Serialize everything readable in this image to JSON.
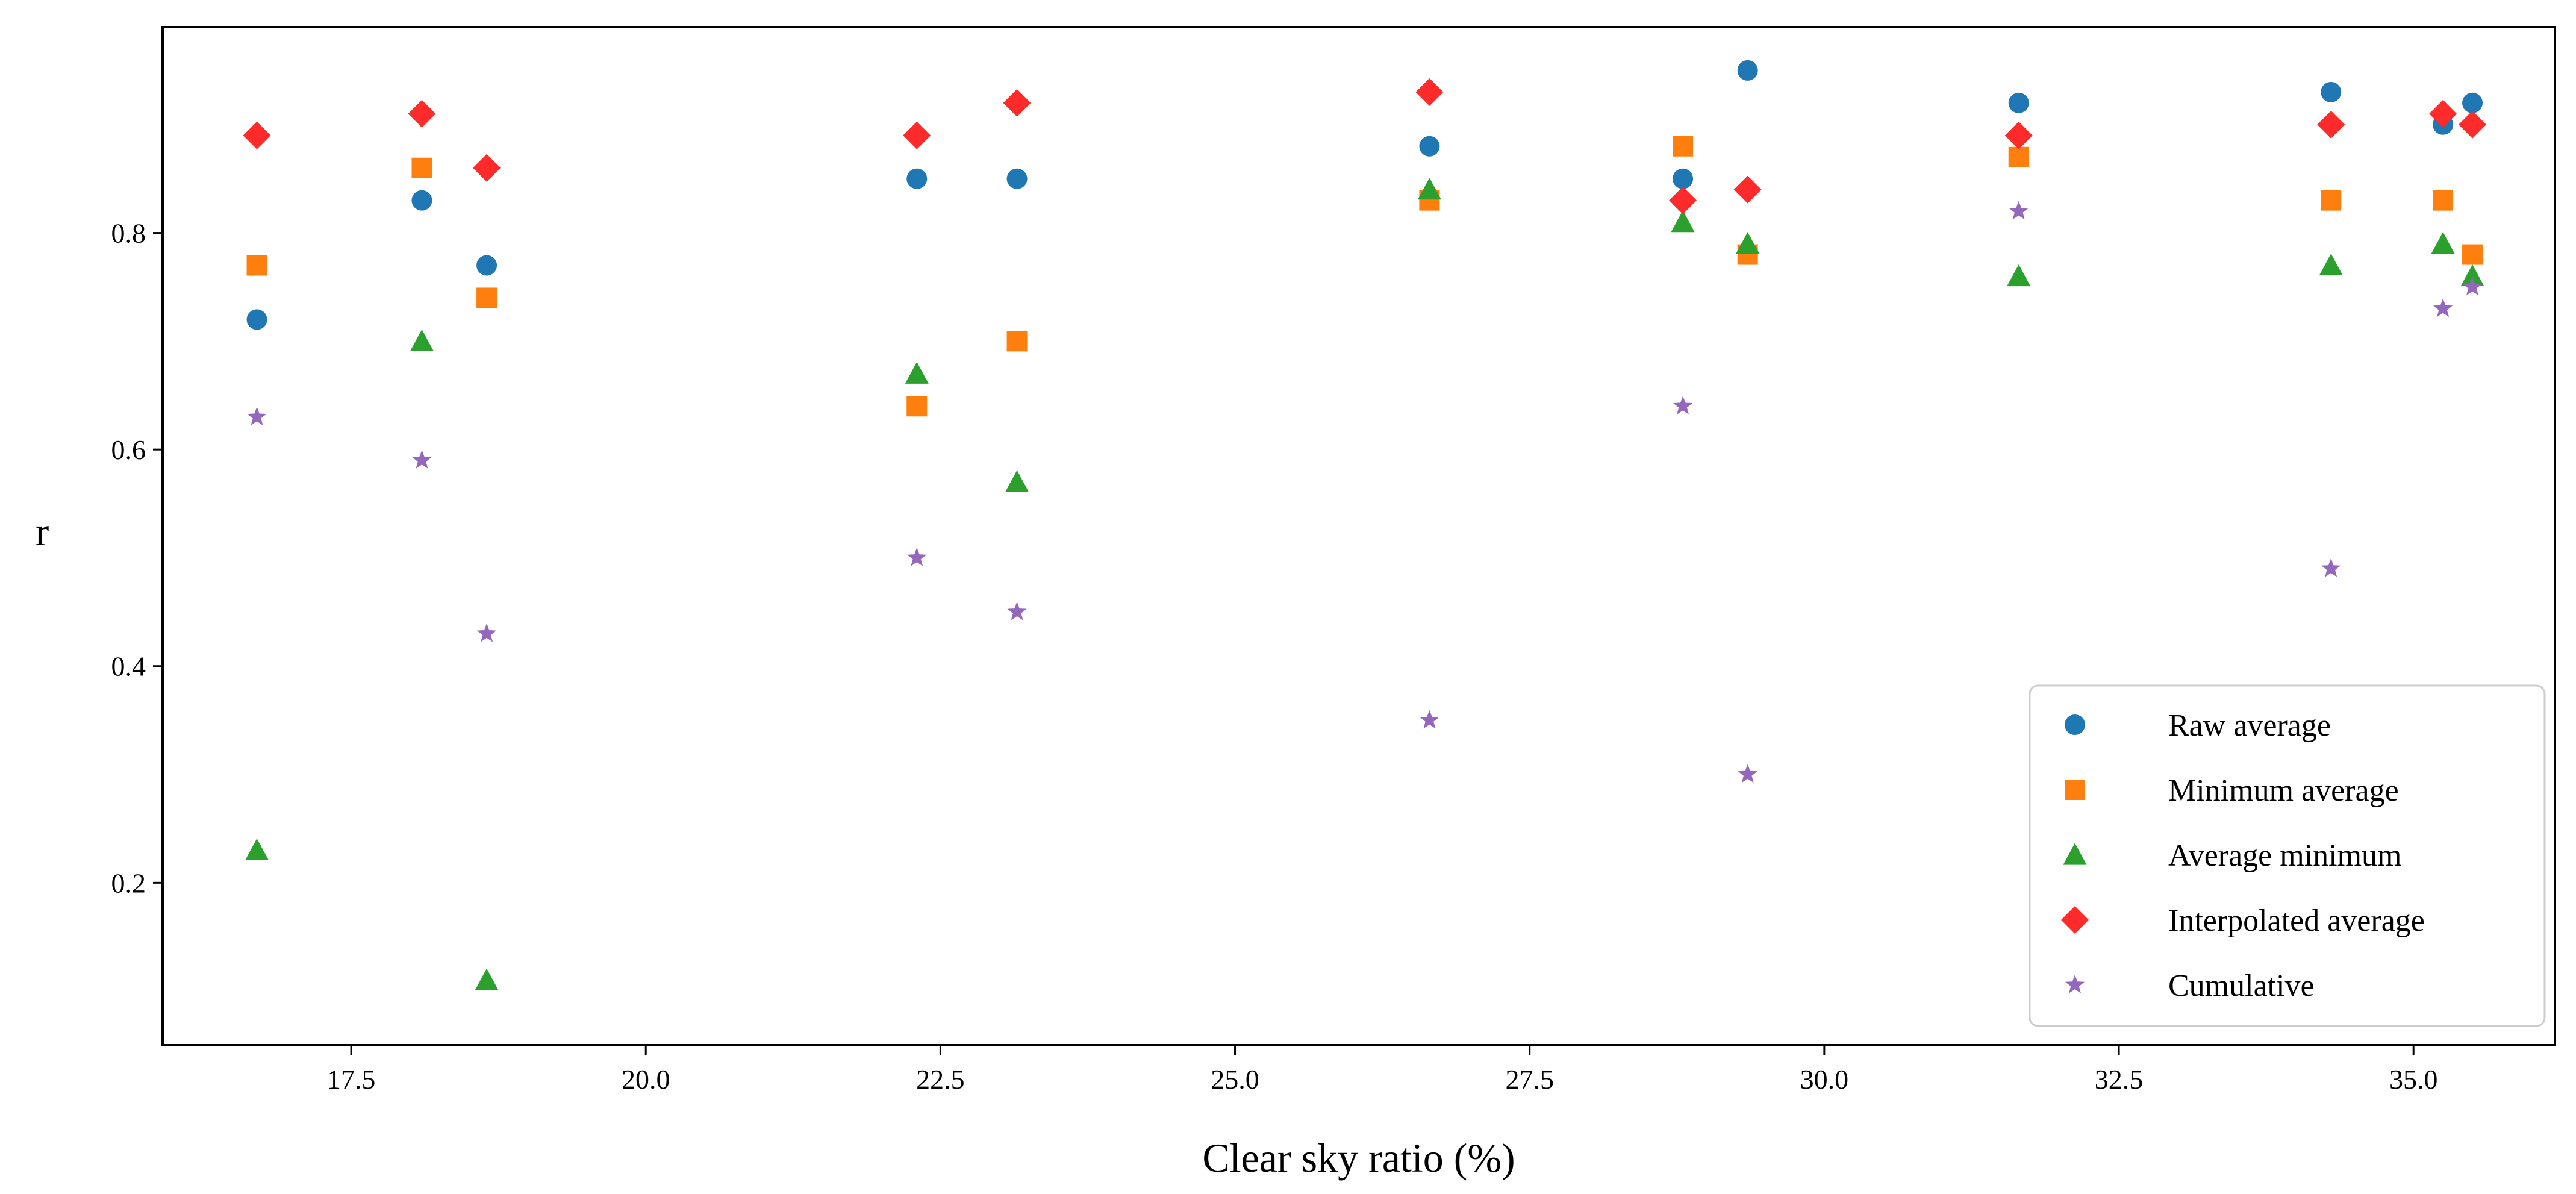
{
  "chart_data": {
    "type": "scatter",
    "title": "",
    "xlabel": "Clear sky ratio (%)",
    "ylabel": "r",
    "xlim": [
      15.9,
      36.2
    ],
    "ylim": [
      0.05,
      0.99
    ],
    "xticks": [
      17.5,
      20.0,
      22.5,
      25.0,
      27.5,
      30.0,
      32.5,
      35.0
    ],
    "xtick_labels": [
      "17.5",
      "20.0",
      "22.5",
      "25.0",
      "27.5",
      "30.0",
      "32.5",
      "35.0"
    ],
    "yticks": [
      0.2,
      0.4,
      0.6,
      0.8
    ],
    "ytick_labels": [
      "0.2",
      "0.4",
      "0.6",
      "0.8"
    ],
    "grid": false,
    "legend_position": "bottom-right",
    "x": [
      16.7,
      18.1,
      18.65,
      22.3,
      23.15,
      26.65,
      28.8,
      29.35,
      31.65,
      34.3,
      35.25,
      35.5
    ],
    "series": [
      {
        "name": "Raw average",
        "marker": "circle",
        "color": "#1f77b4",
        "values": [
          0.72,
          0.83,
          0.77,
          0.85,
          0.85,
          0.88,
          0.85,
          0.95,
          0.92,
          0.93,
          0.9,
          0.92
        ]
      },
      {
        "name": "Minimum average",
        "marker": "square",
        "color": "#ff7f0e",
        "values": [
          0.77,
          0.86,
          0.74,
          0.64,
          0.7,
          0.83,
          0.88,
          0.78,
          0.87,
          0.83,
          0.83,
          0.78
        ]
      },
      {
        "name": "Average minimum",
        "marker": "triangle",
        "color": "#2ca02c",
        "values": [
          0.23,
          0.7,
          0.11,
          0.67,
          0.57,
          0.84,
          0.81,
          0.79,
          0.76,
          0.77,
          0.79,
          0.76
        ]
      },
      {
        "name": "Interpolated average",
        "marker": "diamond",
        "color": "#ff2a2a",
        "values": [
          0.89,
          0.91,
          0.86,
          0.89,
          0.92,
          0.93,
          0.83,
          0.84,
          0.89,
          0.9,
          0.91,
          0.9
        ]
      },
      {
        "name": "Cumulative",
        "marker": "star",
        "color": "#9467bd",
        "values": [
          0.63,
          0.59,
          0.43,
          0.5,
          0.45,
          0.35,
          0.64,
          0.3,
          0.82,
          0.49,
          0.73,
          0.75
        ]
      }
    ]
  }
}
